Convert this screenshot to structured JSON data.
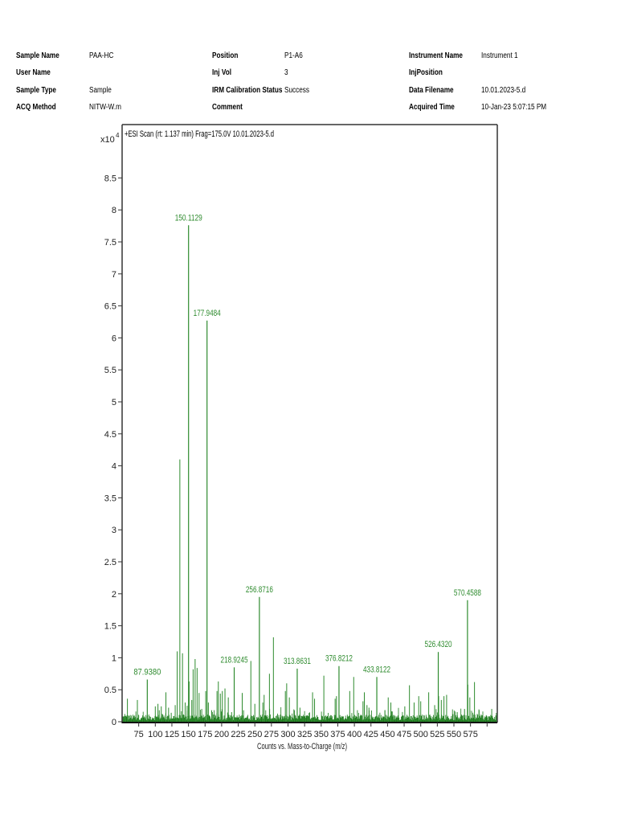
{
  "header": {
    "col1": [
      {
        "label": "Sample Name",
        "value": "PAA-HC"
      },
      {
        "label": "User Name",
        "value": ""
      },
      {
        "label": "Sample Type",
        "value": "Sample"
      },
      {
        "label": "ACQ Method",
        "value": "NITW-W.m"
      }
    ],
    "col2": [
      {
        "label": "Position",
        "value": "P1-A6"
      },
      {
        "label": "Inj Vol",
        "value": "3"
      },
      {
        "label": "IRM Calibration Status",
        "value": "Success"
      },
      {
        "label": "Comment",
        "value": ""
      }
    ],
    "col3": [
      {
        "label": "Instrument Name",
        "value": "Instrument 1"
      },
      {
        "label": "InjPosition",
        "value": ""
      },
      {
        "label": "Data Filename",
        "value": "10.01.2023-5.d"
      },
      {
        "label": "Acquired Time",
        "value": "10-Jan-23 5:07:15 PM"
      }
    ]
  },
  "colors": {
    "peak": "#2e8b2e",
    "baseline": "#1a7a1a",
    "axis": "#333333",
    "label": "#2e8b2e"
  },
  "chart_data": {
    "type": "bar",
    "title": "+ESI Scan (rt: 1.137 min) Frag=175.0V 10.01.2023-5.d",
    "xlabel": "Counts vs. Mass-to-Charge (m/z)",
    "ylabel": "",
    "y_multiplier": "x10",
    "y_exponent": "4",
    "xlim": [
      50,
      615
    ],
    "ylim": [
      0,
      9.2
    ],
    "x_ticks": [
      75,
      100,
      125,
      150,
      175,
      200,
      225,
      250,
      275,
      300,
      325,
      350,
      375,
      400,
      425,
      450,
      475,
      500,
      525,
      550,
      575,
      600
    ],
    "x_tick_labels": [
      "75",
      "100",
      "125",
      "150",
      "175",
      "200",
      "225",
      "250",
      "275",
      "300",
      "325",
      "350",
      "375",
      "400",
      "425",
      "450",
      "475",
      "500",
      "525",
      "550",
      "575",
      ""
    ],
    "y_ticks": [
      0,
      0.5,
      1,
      1.5,
      2,
      2.5,
      3,
      3.5,
      4,
      4.5,
      5,
      5.5,
      6,
      6.5,
      7,
      7.5,
      8,
      8.5
    ],
    "y_tick_labels": [
      "0",
      "0.5",
      "1",
      "1.5",
      "2",
      "2.5",
      "3",
      "3.5",
      "4",
      "4.5",
      "5",
      "5.5",
      "6",
      "6.5",
      "7",
      "7.5",
      "8",
      "8.5"
    ],
    "labeled_peaks": [
      {
        "mz": 87.938,
        "intensity": 0.66,
        "label": "87.9380"
      },
      {
        "mz": 150.1129,
        "intensity": 7.76,
        "label": "150.1129"
      },
      {
        "mz": 177.9484,
        "intensity": 6.27,
        "label": "177.9484"
      },
      {
        "mz": 218.9245,
        "intensity": 0.85,
        "label": "218.9245"
      },
      {
        "mz": 256.8716,
        "intensity": 1.95,
        "label": "256.8716"
      },
      {
        "mz": 313.8631,
        "intensity": 0.83,
        "label": "313.8631"
      },
      {
        "mz": 376.8212,
        "intensity": 0.87,
        "label": "376.8212"
      },
      {
        "mz": 433.8122,
        "intensity": 0.7,
        "label": "433.8122"
      },
      {
        "mz": 526.432,
        "intensity": 1.09,
        "label": "526.4320"
      },
      {
        "mz": 570.4588,
        "intensity": 1.9,
        "label": "570.4588"
      }
    ],
    "unlabeled_peaks": [
      {
        "mz": 54,
        "intensity": 0.12
      },
      {
        "mz": 58,
        "intensity": 0.36
      },
      {
        "mz": 62,
        "intensity": 0.1
      },
      {
        "mz": 73,
        "intensity": 0.34
      },
      {
        "mz": 75,
        "intensity": 0.1
      },
      {
        "mz": 79,
        "intensity": 0.06
      },
      {
        "mz": 100,
        "intensity": 0.24
      },
      {
        "mz": 104,
        "intensity": 0.28
      },
      {
        "mz": 106,
        "intensity": 0.18
      },
      {
        "mz": 109,
        "intensity": 0.24
      },
      {
        "mz": 116,
        "intensity": 0.46
      },
      {
        "mz": 120,
        "intensity": 0.22
      },
      {
        "mz": 124,
        "intensity": 0.14
      },
      {
        "mz": 130,
        "intensity": 0.26
      },
      {
        "mz": 133,
        "intensity": 1.1
      },
      {
        "mz": 137,
        "intensity": 4.1
      },
      {
        "mz": 141,
        "intensity": 1.07
      },
      {
        "mz": 145,
        "intensity": 0.3
      },
      {
        "mz": 148,
        "intensity": 0.25
      },
      {
        "mz": 151,
        "intensity": 0.63
      },
      {
        "mz": 155,
        "intensity": 0.34
      },
      {
        "mz": 157,
        "intensity": 0.82
      },
      {
        "mz": 160,
        "intensity": 0.98
      },
      {
        "mz": 163,
        "intensity": 0.84
      },
      {
        "mz": 166,
        "intensity": 0.45
      },
      {
        "mz": 170,
        "intensity": 0.2
      },
      {
        "mz": 176,
        "intensity": 0.48
      },
      {
        "mz": 180,
        "intensity": 0.3
      },
      {
        "mz": 185,
        "intensity": 0.18
      },
      {
        "mz": 193,
        "intensity": 0.48
      },
      {
        "mz": 195,
        "intensity": 0.63
      },
      {
        "mz": 198,
        "intensity": 0.44
      },
      {
        "mz": 201,
        "intensity": 0.48
      },
      {
        "mz": 205,
        "intensity": 0.52
      },
      {
        "mz": 210,
        "intensity": 0.38
      },
      {
        "mz": 215,
        "intensity": 0.15
      },
      {
        "mz": 231,
        "intensity": 0.45
      },
      {
        "mz": 233,
        "intensity": 0.18
      },
      {
        "mz": 244,
        "intensity": 0.95
      },
      {
        "mz": 250,
        "intensity": 0.28
      },
      {
        "mz": 262,
        "intensity": 0.3
      },
      {
        "mz": 264,
        "intensity": 0.42
      },
      {
        "mz": 272,
        "intensity": 0.75
      },
      {
        "mz": 278,
        "intensity": 1.32
      },
      {
        "mz": 296,
        "intensity": 0.48
      },
      {
        "mz": 298,
        "intensity": 0.6
      },
      {
        "mz": 302,
        "intensity": 0.38
      },
      {
        "mz": 318,
        "intensity": 0.22
      },
      {
        "mz": 337,
        "intensity": 0.46
      },
      {
        "mz": 340,
        "intensity": 0.36
      },
      {
        "mz": 354,
        "intensity": 0.72
      },
      {
        "mz": 371,
        "intensity": 0.36
      },
      {
        "mz": 373,
        "intensity": 0.4
      },
      {
        "mz": 393,
        "intensity": 0.48
      },
      {
        "mz": 399,
        "intensity": 0.7
      },
      {
        "mz": 413,
        "intensity": 0.32
      },
      {
        "mz": 415,
        "intensity": 0.46
      },
      {
        "mz": 419,
        "intensity": 0.26
      },
      {
        "mz": 422,
        "intensity": 0.22
      },
      {
        "mz": 446,
        "intensity": 0.18
      },
      {
        "mz": 451,
        "intensity": 0.38
      },
      {
        "mz": 455,
        "intensity": 0.3
      },
      {
        "mz": 476,
        "intensity": 0.24
      },
      {
        "mz": 483,
        "intensity": 0.57
      },
      {
        "mz": 490,
        "intensity": 0.3
      },
      {
        "mz": 497,
        "intensity": 0.4
      },
      {
        "mz": 500,
        "intensity": 0.32
      },
      {
        "mz": 512,
        "intensity": 0.46
      },
      {
        "mz": 521,
        "intensity": 0.26
      },
      {
        "mz": 527,
        "intensity": 0.4
      },
      {
        "mz": 531,
        "intensity": 0.34
      },
      {
        "mz": 535,
        "intensity": 0.4
      },
      {
        "mz": 539,
        "intensity": 0.42
      },
      {
        "mz": 555,
        "intensity": 0.15
      },
      {
        "mz": 566,
        "intensity": 0.2
      },
      {
        "mz": 571,
        "intensity": 0.58
      },
      {
        "mz": 574,
        "intensity": 0.38
      },
      {
        "mz": 581,
        "intensity": 0.62
      },
      {
        "mz": 588,
        "intensity": 0.18
      },
      {
        "mz": 607,
        "intensity": 0.2
      }
    ],
    "grid": false,
    "legend": "none"
  }
}
